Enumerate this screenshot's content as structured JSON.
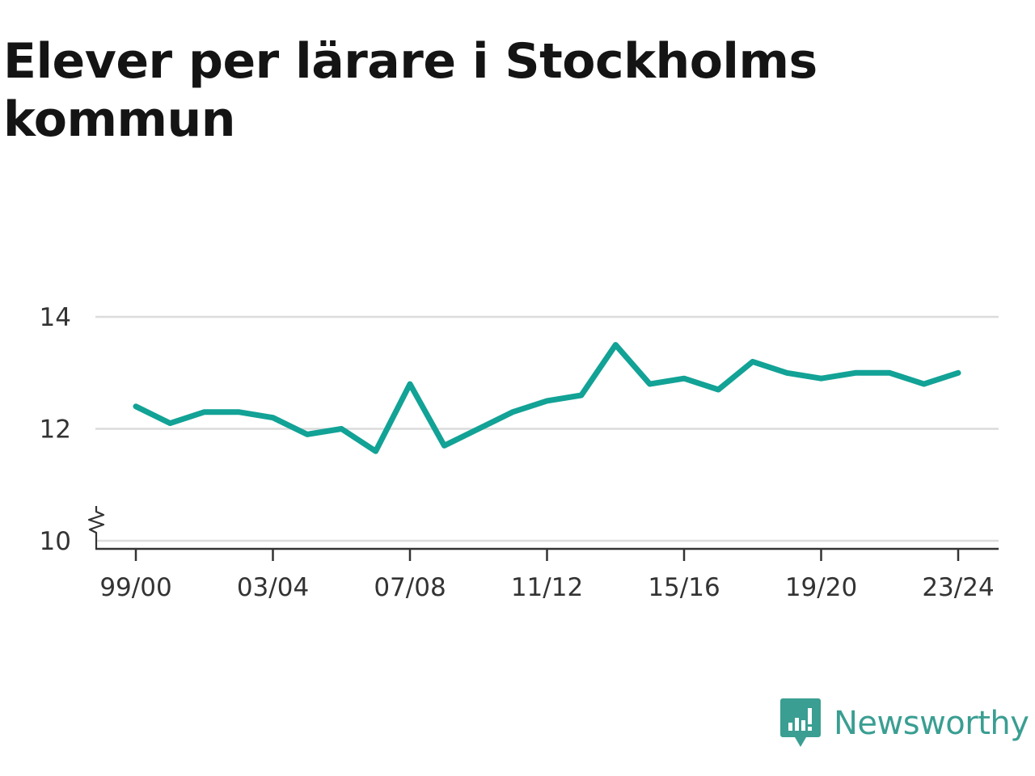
{
  "title": "Elever per lärare i Stockholms kommun",
  "brand": {
    "name": "Newsworthy",
    "logo_icon": "newsworthy-logo-icon",
    "color": "#3a9e92"
  },
  "chart_data": {
    "type": "line",
    "title": "Elever per lärare i Stockholms kommun",
    "xlabel": "",
    "ylabel": "",
    "x": [
      "99/00",
      "00/01",
      "01/02",
      "02/03",
      "03/04",
      "04/05",
      "05/06",
      "06/07",
      "07/08",
      "08/09",
      "09/10",
      "10/11",
      "11/12",
      "12/13",
      "13/14",
      "14/15",
      "15/16",
      "16/17",
      "17/18",
      "18/19",
      "19/20",
      "20/21",
      "21/22",
      "22/23",
      "23/24"
    ],
    "x_tick_labels": [
      "99/00",
      "03/04",
      "07/08",
      "11/12",
      "15/16",
      "19/20",
      "23/24"
    ],
    "y_ticks": [
      10,
      12,
      14
    ],
    "ylim": [
      10,
      14
    ],
    "y_axis_break": true,
    "grid": true,
    "series": [
      {
        "color": "#12a296",
        "values": [
          12.4,
          12.1,
          12.3,
          12.3,
          12.2,
          11.9,
          12.0,
          11.6,
          12.8,
          11.7,
          12.0,
          12.3,
          12.5,
          12.6,
          13.5,
          12.8,
          12.9,
          12.7,
          13.2,
          13.0,
          12.9,
          13.0,
          13.0,
          12.8,
          13.0
        ]
      }
    ]
  }
}
